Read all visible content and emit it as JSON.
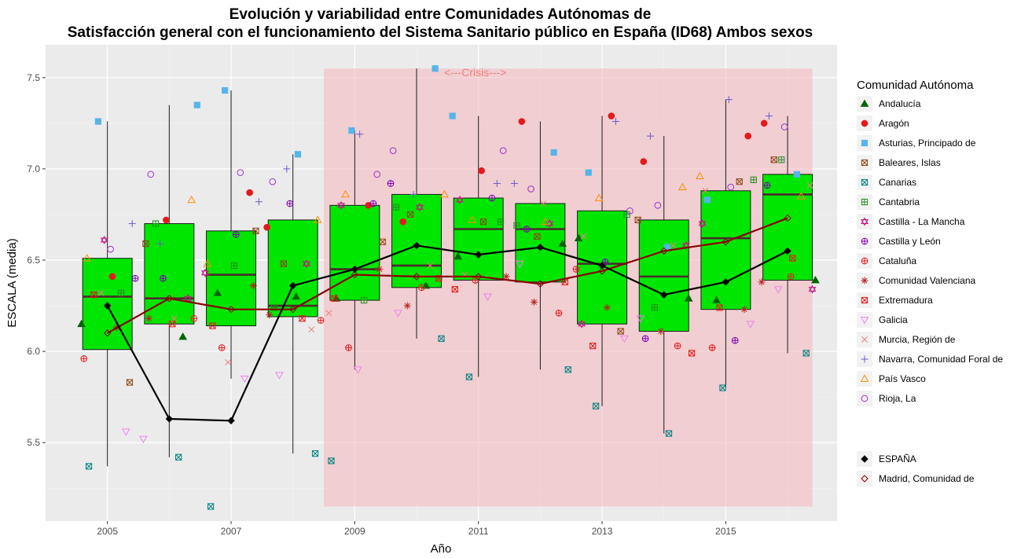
{
  "chart_data": {
    "type": "box",
    "title_line1": "Evolución y variabilidad entre Comunidades Autónomas de",
    "title_line2": "Satisfacción general con el funcionamiento del Sistema Sanitario público en España (ID68) Ambos sexos",
    "xlabel": "Año",
    "ylabel": "ESCALA (media)",
    "xlim": [
      2004.0,
      2016.8
    ],
    "ylim": [
      5.07,
      7.68
    ],
    "x_ticks": [
      2005,
      2007,
      2009,
      2011,
      2013,
      2015
    ],
    "y_ticks": [
      5.5,
      6.0,
      6.5,
      7.0,
      7.5
    ],
    "grid": true,
    "crisis": {
      "label": "<---Crisis--->",
      "x_start": 2008.5,
      "x_end": 2016.4,
      "y_start": 5.15,
      "y_end": 7.55,
      "color": "#f4b6bc"
    },
    "box_color": "#00e600",
    "boxes": [
      {
        "x": 2005,
        "lower": 5.37,
        "q1": 6.01,
        "median": 6.3,
        "q3": 6.51,
        "upper": 7.26
      },
      {
        "x": 2006,
        "lower": 5.42,
        "q1": 6.15,
        "median": 6.29,
        "q3": 6.7,
        "upper": 7.35
      },
      {
        "x": 2007,
        "lower": 5.85,
        "q1": 6.14,
        "median": 6.42,
        "q3": 6.66,
        "upper": 7.43
      },
      {
        "x": 2008,
        "lower": 5.44,
        "q1": 6.19,
        "median": 6.25,
        "q3": 6.72,
        "upper": 7.08
      },
      {
        "x": 2009,
        "lower": 5.9,
        "q1": 6.28,
        "median": 6.45,
        "q3": 6.8,
        "upper": 7.21
      },
      {
        "x": 2010,
        "lower": 6.07,
        "q1": 6.35,
        "median": 6.47,
        "q3": 6.86,
        "upper": 7.55
      },
      {
        "x": 2011,
        "lower": 5.86,
        "q1": 6.39,
        "median": 6.67,
        "q3": 6.84,
        "upper": 7.29
      },
      {
        "x": 2012,
        "lower": 5.9,
        "q1": 6.38,
        "median": 6.67,
        "q3": 6.81,
        "upper": 7.26
      },
      {
        "x": 2013,
        "lower": 5.7,
        "q1": 6.15,
        "median": 6.48,
        "q3": 6.77,
        "upper": 7.29
      },
      {
        "x": 2014,
        "lower": 5.55,
        "q1": 6.11,
        "median": 6.41,
        "q3": 6.72,
        "upper": 7.18
      },
      {
        "x": 2015,
        "lower": 5.8,
        "q1": 6.23,
        "median": 6.62,
        "q3": 6.88,
        "upper": 7.38
      },
      {
        "x": 2016,
        "lower": 5.99,
        "q1": 6.39,
        "median": 6.86,
        "q3": 6.97,
        "upper": 7.29
      }
    ],
    "series": [
      {
        "name": "Andalucía",
        "shape": "triangle",
        "color": "#006400",
        "fill": true,
        "values": [
          6.15,
          6.08,
          6.32,
          6.3,
          6.29,
          6.36,
          6.52,
          6.59,
          6.62,
          6.29,
          6.28,
          6.39
        ]
      },
      {
        "name": "Aragón",
        "shape": "circle",
        "color": "#e31a1c",
        "fill": true,
        "values": [
          6.41,
          6.72,
          6.87,
          6.68,
          6.8,
          6.71,
          6.99,
          7.26,
          7.29,
          7.04,
          7.18,
          7.25
        ]
      },
      {
        "name": "Asturias, Principado de",
        "shape": "square",
        "color": "#56b4e9",
        "fill": true,
        "values": [
          7.26,
          7.35,
          7.43,
          7.08,
          7.21,
          7.55,
          7.29,
          7.09,
          6.98,
          6.57,
          6.83,
          6.97
        ]
      },
      {
        "name": "Baleares, Islas",
        "shape": "square-x",
        "color": "#8b4513",
        "fill": false,
        "values": [
          5.83,
          6.59,
          6.66,
          6.48,
          6.6,
          6.75,
          6.71,
          6.63,
          6.11,
          6.72,
          6.93,
          7.05
        ]
      },
      {
        "name": "Canarias",
        "shape": "square-x",
        "color": "#008080",
        "fill": false,
        "values": [
          5.37,
          5.42,
          5.15,
          5.44,
          5.4,
          6.07,
          5.86,
          5.9,
          5.7,
          5.55,
          5.8,
          5.99
        ]
      },
      {
        "name": "Cantabria",
        "shape": "square-plus",
        "color": "#228b22",
        "fill": false,
        "values": [
          6.32,
          6.7,
          6.47,
          6.24,
          6.28,
          6.79,
          6.71,
          6.69,
          6.75,
          6.24,
          6.94,
          7.05
        ]
      },
      {
        "name": "Castilla - La Mancha",
        "shape": "star",
        "color": "#c71585",
        "fill": false,
        "values": [
          6.61,
          6.29,
          6.43,
          6.48,
          6.8,
          6.79,
          6.83,
          6.7,
          6.15,
          6.58,
          6.7,
          6.34
        ]
      },
      {
        "name": "Castilla y León",
        "shape": "circle-plus",
        "color": "#7b00b4",
        "fill": false,
        "values": [
          6.4,
          6.4,
          6.64,
          6.81,
          6.81,
          6.92,
          6.84,
          6.67,
          6.49,
          6.07,
          6.06,
          6.91
        ]
      },
      {
        "name": "Cataluña",
        "shape": "circle-plus",
        "color": "#e31a1c",
        "fill": false,
        "values": [
          5.96,
          6.18,
          6.02,
          6.17,
          6.02,
          6.35,
          6.39,
          6.21,
          6.45,
          6.03,
          6.02,
          6.41
        ]
      },
      {
        "name": "Comunidad Valenciana",
        "shape": "asterisk",
        "color": "#b22222",
        "fill": false,
        "values": [
          6.13,
          6.18,
          6.36,
          6.2,
          6.45,
          6.25,
          6.41,
          6.27,
          6.24,
          6.11,
          6.23,
          6.38
        ]
      },
      {
        "name": "Extremadura",
        "shape": "square-x",
        "color": "#e31a1c",
        "fill": false,
        "values": [
          6.31,
          6.15,
          6.14,
          6.18,
          6.29,
          6.4,
          6.34,
          6.38,
          6.03,
          5.99,
          6.24,
          6.51
        ]
      },
      {
        "name": "Galicia",
        "shape": "triangle-down",
        "color": "#ee82ee",
        "fill": false,
        "values": [
          5.56,
          5.52,
          5.85,
          5.87,
          5.9,
          6.21,
          6.3,
          6.48,
          6.07,
          6.18,
          6.15,
          6.34
        ]
      },
      {
        "name": "Murcia, Región de",
        "shape": "x",
        "color": "#f08080",
        "fill": false,
        "values": [
          6.32,
          6.18,
          5.94,
          6.12,
          6.21,
          6.47,
          6.42,
          6.81,
          6.63,
          6.58,
          6.88,
          6.91
        ]
      },
      {
        "name": "Navarra, Comunidad Foral de",
        "shape": "plus",
        "color": "#6a5acd",
        "fill": false,
        "values": [
          6.7,
          6.59,
          6.82,
          7.0,
          7.19,
          6.86,
          6.92,
          6.92,
          7.26,
          7.18,
          7.38,
          7.29
        ]
      },
      {
        "name": "País Vasco",
        "shape": "triangle",
        "color": "#ff8c00",
        "fill": false,
        "values": [
          6.51,
          6.83,
          6.48,
          6.72,
          6.86,
          6.86,
          6.72,
          6.71,
          6.84,
          6.9,
          6.96,
          6.85
        ]
      },
      {
        "name": "Rioja, La",
        "shape": "circle",
        "color": "#9932cc",
        "fill": false,
        "values": [
          6.56,
          6.97,
          6.98,
          6.93,
          6.97,
          7.1,
          7.1,
          6.89,
          6.77,
          6.8,
          6.9,
          7.23
        ]
      }
    ],
    "espana": {
      "name": "ESPAÑA",
      "shape": "diamond",
      "color": "#000000",
      "fill": true,
      "values": [
        6.25,
        5.63,
        5.62,
        6.36,
        6.45,
        6.58,
        6.53,
        6.57,
        6.47,
        6.31,
        6.38,
        6.55
      ]
    },
    "madrid": {
      "name": "Madrid, Comunidad de",
      "shape": "diamond",
      "color": "#8b0000",
      "fill": false,
      "values": [
        6.1,
        6.29,
        6.23,
        6.23,
        6.42,
        6.41,
        6.41,
        6.37,
        6.44,
        6.55,
        6.6,
        6.73
      ]
    },
    "legend_title": "Comunidad Autónoma",
    "legend_position": "right"
  }
}
